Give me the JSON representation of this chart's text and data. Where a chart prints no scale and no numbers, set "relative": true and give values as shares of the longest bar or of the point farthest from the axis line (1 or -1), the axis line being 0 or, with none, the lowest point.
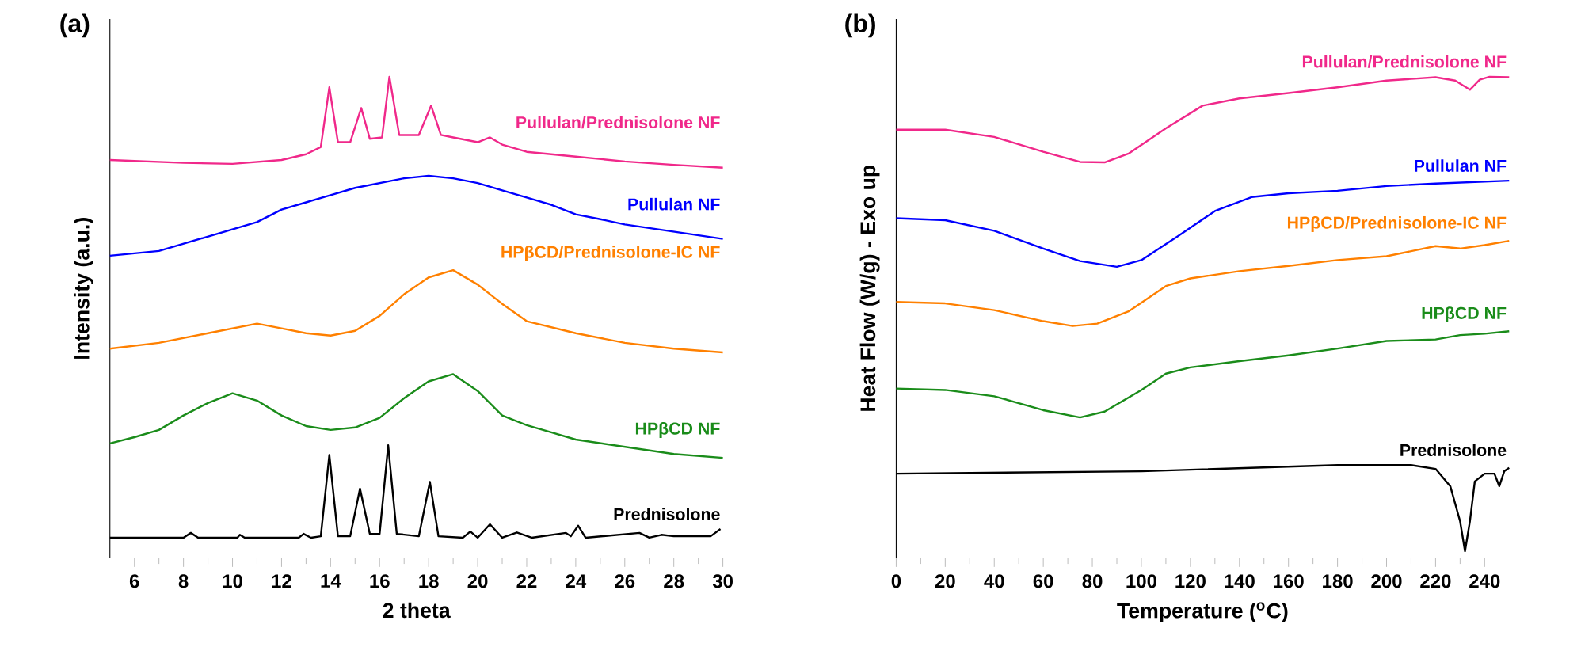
{
  "chart_data": [
    {
      "type": "line",
      "title": "(a)",
      "xlabel": "2 theta",
      "ylabel": "Intensity (a.u.)",
      "relative": true,
      "xlim": [
        5,
        30
      ],
      "xticks": [
        6,
        8,
        10,
        12,
        14,
        16,
        18,
        20,
        22,
        24,
        26,
        28,
        30
      ],
      "series": [
        {
          "name": "Prednisolone",
          "color": "#000000",
          "x": [
            5,
            8.0,
            8.3,
            8.6,
            10.2,
            10.3,
            10.5,
            12.7,
            12.9,
            13.2,
            13.6,
            13.95,
            14.3,
            14.8,
            15.2,
            15.6,
            16.0,
            16.35,
            16.7,
            17.6,
            18.05,
            18.4,
            19.4,
            19.7,
            20.0,
            20.5,
            21.0,
            21.6,
            22.2,
            23.6,
            23.8,
            24.1,
            24.4,
            26.6,
            27.0,
            27.5,
            28.0,
            29.0,
            29.5,
            29.9
          ],
          "values": [
            0.042,
            0.042,
            0.052,
            0.042,
            0.042,
            0.048,
            0.042,
            0.042,
            0.05,
            0.042,
            0.045,
            0.214,
            0.045,
            0.045,
            0.144,
            0.05,
            0.05,
            0.234,
            0.05,
            0.045,
            0.158,
            0.045,
            0.042,
            0.055,
            0.042,
            0.07,
            0.042,
            0.053,
            0.042,
            0.052,
            0.045,
            0.067,
            0.042,
            0.052,
            0.042,
            0.048,
            0.045,
            0.045,
            0.045,
            0.06
          ]
        },
        {
          "name": "HPβCD NF",
          "color": "#1a8c1a",
          "x": [
            5,
            6,
            7,
            8,
            9,
            10,
            11,
            12,
            13,
            14,
            15,
            16,
            17,
            18,
            19,
            20,
            21,
            22,
            23,
            24,
            26,
            28,
            30
          ],
          "values": [
            0.238,
            0.251,
            0.266,
            0.296,
            0.322,
            0.342,
            0.327,
            0.296,
            0.274,
            0.266,
            0.271,
            0.291,
            0.332,
            0.367,
            0.382,
            0.347,
            0.296,
            0.276,
            0.261,
            0.246,
            0.231,
            0.216,
            0.208
          ]
        },
        {
          "name": "HPβCD/Prednisolone-IC NF",
          "color": "#ff8000",
          "x": [
            5,
            7,
            9,
            11,
            12,
            13,
            14,
            15,
            16,
            17,
            18,
            19,
            20,
            21,
            22,
            24,
            26,
            28,
            30
          ],
          "values": [
            0.435,
            0.447,
            0.467,
            0.487,
            0.477,
            0.467,
            0.462,
            0.472,
            0.503,
            0.548,
            0.583,
            0.598,
            0.568,
            0.528,
            0.492,
            0.467,
            0.447,
            0.435,
            0.427
          ]
        },
        {
          "name": "Pullulan NF",
          "color": "#0000ff",
          "x": [
            5,
            7,
            9,
            11,
            12,
            13,
            14,
            15,
            16,
            17,
            18,
            19,
            20,
            21,
            22,
            23,
            24,
            25,
            26,
            28,
            30
          ],
          "values": [
            0.628,
            0.638,
            0.668,
            0.698,
            0.724,
            0.739,
            0.754,
            0.769,
            0.779,
            0.789,
            0.794,
            0.789,
            0.779,
            0.764,
            0.749,
            0.734,
            0.714,
            0.704,
            0.693,
            0.678,
            0.663
          ]
        },
        {
          "name": "Pullulan/Prednisolone NF",
          "color": "#f0288a",
          "x": [
            5,
            8,
            10,
            12,
            13,
            13.6,
            13.95,
            14.3,
            14.8,
            15.25,
            15.6,
            16.1,
            16.4,
            16.8,
            17.6,
            18.1,
            18.5,
            19,
            20,
            20.5,
            21,
            22,
            24,
            26,
            28,
            30
          ],
          "values": [
            0.827,
            0.821,
            0.819,
            0.827,
            0.839,
            0.854,
            0.978,
            0.864,
            0.864,
            0.935,
            0.871,
            0.874,
            1.0,
            0.879,
            0.879,
            0.94,
            0.879,
            0.874,
            0.864,
            0.874,
            0.859,
            0.844,
            0.834,
            0.824,
            0.817,
            0.811
          ]
        }
      ]
    },
    {
      "type": "line",
      "title": "(b)",
      "xlabel": "Temperature ($^{o}$C)",
      "ylabel": "Heat Flow (W/g) - Exo up",
      "relative": true,
      "xlim": [
        0,
        250
      ],
      "xticks": [
        0,
        20,
        40,
        60,
        80,
        100,
        120,
        140,
        160,
        180,
        200,
        220,
        240
      ],
      "series": [
        {
          "name": "Prednisolone",
          "color": "#000000",
          "x": [
            0,
            100,
            180,
            210,
            220,
            226,
            230,
            232,
            234,
            236,
            240,
            244,
            246,
            248,
            250
          ],
          "values": [
            0.175,
            0.18,
            0.193,
            0.193,
            0.185,
            0.149,
            0.076,
            0.014,
            0.076,
            0.159,
            0.175,
            0.175,
            0.149,
            0.18,
            0.187
          ]
        },
        {
          "name": "HPβCD NF",
          "color": "#1a8c1a",
          "x": [
            0,
            20,
            40,
            60,
            75,
            85,
            100,
            110,
            120,
            140,
            160,
            180,
            200,
            220,
            230,
            240,
            250
          ],
          "values": [
            0.352,
            0.349,
            0.336,
            0.307,
            0.292,
            0.304,
            0.349,
            0.383,
            0.396,
            0.409,
            0.421,
            0.435,
            0.451,
            0.454,
            0.463,
            0.466,
            0.471
          ]
        },
        {
          "name": "HPβCD/Prednisolone-IC NF",
          "color": "#ff8000",
          "x": [
            0,
            20,
            40,
            60,
            72,
            82,
            95,
            110,
            120,
            140,
            160,
            180,
            200,
            220,
            230,
            240,
            250
          ],
          "values": [
            0.532,
            0.529,
            0.515,
            0.492,
            0.482,
            0.487,
            0.513,
            0.565,
            0.581,
            0.596,
            0.607,
            0.619,
            0.627,
            0.648,
            0.643,
            0.65,
            0.659
          ]
        },
        {
          "name": "Pullulan NF",
          "color": "#0000ff",
          "x": [
            0,
            20,
            40,
            60,
            75,
            90,
            100,
            115,
            130,
            145,
            160,
            180,
            200,
            220,
            250
          ],
          "values": [
            0.706,
            0.702,
            0.68,
            0.643,
            0.617,
            0.605,
            0.619,
            0.669,
            0.721,
            0.75,
            0.758,
            0.763,
            0.773,
            0.778,
            0.784
          ]
        },
        {
          "name": "Pullulan/Prednisolone NF",
          "color": "#f0288a",
          "x": [
            0,
            20,
            40,
            60,
            75,
            85,
            95,
            110,
            125,
            140,
            160,
            180,
            200,
            220,
            228,
            234,
            238,
            242,
            250
          ],
          "values": [
            0.89,
            0.89,
            0.875,
            0.844,
            0.823,
            0.822,
            0.841,
            0.893,
            0.94,
            0.955,
            0.966,
            0.978,
            0.992,
            0.999,
            0.992,
            0.973,
            0.994,
            1.0,
            0.999
          ]
        }
      ]
    }
  ]
}
